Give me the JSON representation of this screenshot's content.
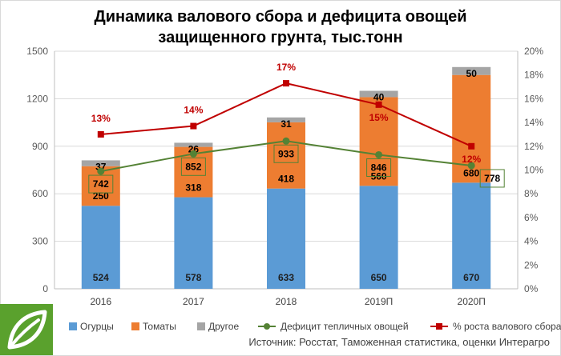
{
  "chart_data": {
    "type": "bar",
    "title_line1": "Динамика валового сбора и дефицита овощей",
    "title_line2": "защищенного грунта, тыс.тонн",
    "categories": [
      "2016",
      "2017",
      "2018",
      "2019П",
      "2020П"
    ],
    "stacked": true,
    "series": [
      {
        "name": "Огурцы",
        "kind": "bar",
        "color": "#5b9bd5",
        "values": [
          524,
          578,
          633,
          650,
          670
        ]
      },
      {
        "name": "Томаты",
        "kind": "bar",
        "color": "#ed7d31",
        "values": [
          250,
          318,
          418,
          560,
          680
        ]
      },
      {
        "name": "Другое",
        "kind": "bar",
        "color": "#a5a5a5",
        "values": [
          37,
          26,
          31,
          40,
          50
        ]
      },
      {
        "name": "Дефицит тепличных овощей",
        "kind": "line",
        "axis": "left",
        "color": "#548235",
        "values": [
          742,
          852,
          933,
          846,
          778
        ],
        "labels": [
          "742",
          "852",
          "933",
          "846",
          "778"
        ]
      },
      {
        "name": "% роста валового сбора",
        "kind": "line",
        "axis": "right",
        "color": "#c00000",
        "values": [
          13,
          13.7,
          17.3,
          15.5,
          12
        ],
        "labels": [
          "13%",
          "14%",
          "17%",
          "15%",
          "12%"
        ]
      }
    ],
    "y_left": {
      "min": 0,
      "max": 1500,
      "ticks": [
        "0",
        "300",
        "600",
        "900",
        "1200",
        "1500"
      ]
    },
    "y_right": {
      "min": 0,
      "max": 20,
      "ticks": [
        "0%",
        "2%",
        "4%",
        "6%",
        "8%",
        "10%",
        "12%",
        "14%",
        "16%",
        "18%",
        "20%"
      ]
    },
    "grid": true,
    "legend_position": "bottom"
  },
  "source_text": "Источник: Росстат, Таможенная статистика, оценки Интерагро"
}
